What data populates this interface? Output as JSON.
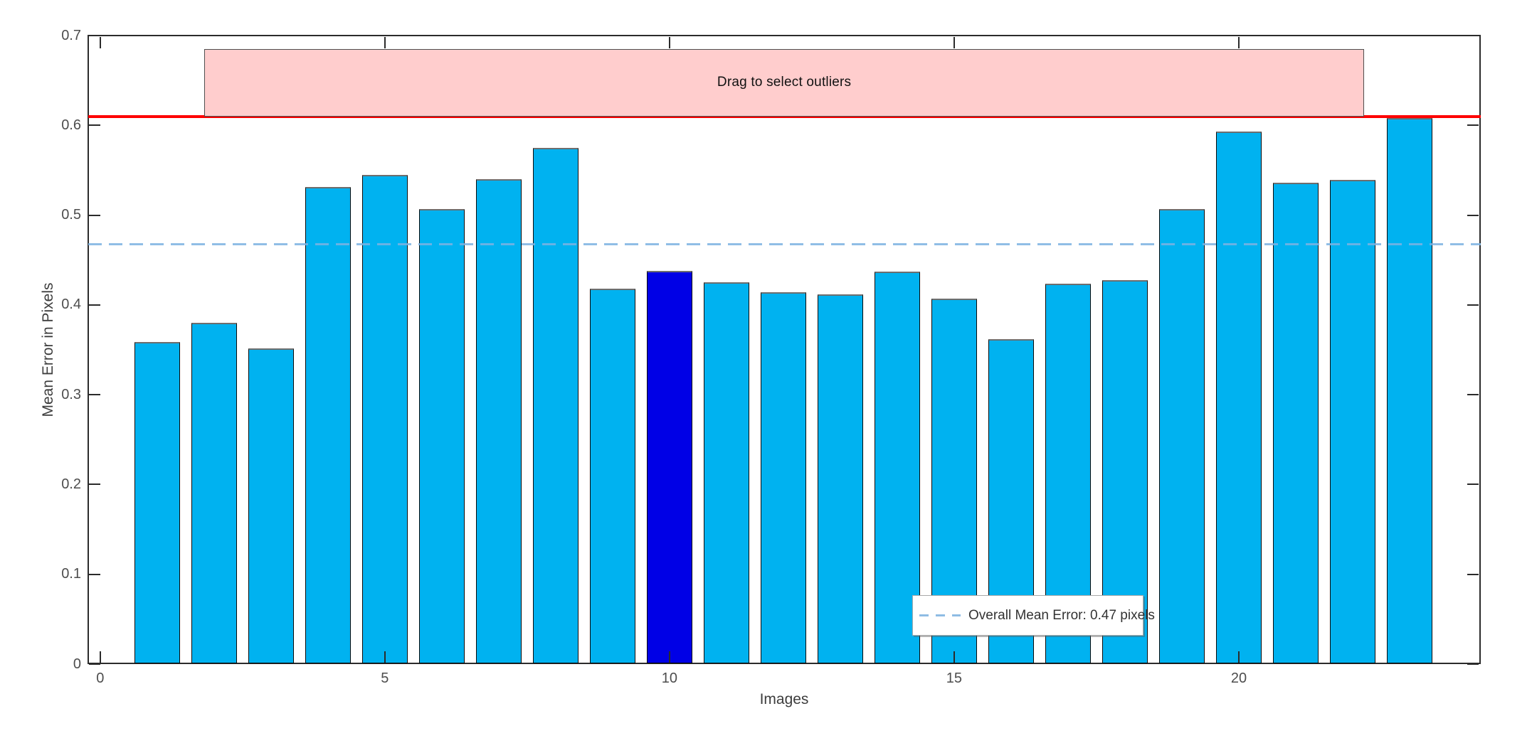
{
  "chart_data": {
    "type": "bar",
    "title": "",
    "xlabel": "Images",
    "ylabel": "Mean Error in Pixels",
    "x": [
      1,
      2,
      3,
      4,
      5,
      6,
      7,
      8,
      9,
      10,
      11,
      12,
      13,
      14,
      15,
      16,
      17,
      18,
      19,
      20,
      21,
      22,
      23
    ],
    "values": [
      0.359,
      0.38,
      0.352,
      0.531,
      0.545,
      0.507,
      0.54,
      0.575,
      0.418,
      0.438,
      0.425,
      0.414,
      0.412,
      0.437,
      0.407,
      0.362,
      0.424,
      0.428,
      0.507,
      0.593,
      0.536,
      0.539,
      0.608
    ],
    "selected_image": 10,
    "bar_width_units": 0.8,
    "xlim": [
      -0.21,
      24.25
    ],
    "ylim": [
      0,
      0.7
    ],
    "grid": false,
    "xticks": [
      {
        "v": 0,
        "label": "0"
      },
      {
        "v": 5,
        "label": "5"
      },
      {
        "v": 10,
        "label": "10"
      },
      {
        "v": 15,
        "label": "15"
      },
      {
        "v": 20,
        "label": "20"
      }
    ],
    "yticks": [
      {
        "v": 0.0,
        "label": "0"
      },
      {
        "v": 0.1,
        "label": "0.1"
      },
      {
        "v": 0.2,
        "label": "0.2"
      },
      {
        "v": 0.3,
        "label": "0.3"
      },
      {
        "v": 0.4,
        "label": "0.4"
      },
      {
        "v": 0.5,
        "label": "0.5"
      },
      {
        "v": 0.6,
        "label": "0.6"
      },
      {
        "v": 0.7,
        "label": "0.7"
      }
    ],
    "threshold_line": {
      "y": 0.61,
      "color": "#fe0000"
    },
    "mean_line": {
      "y": 0.468,
      "style": "dashed",
      "color": "#7db2e2"
    },
    "drag_region": {
      "x0": 1.83,
      "x1": 22.2,
      "y0": 0.61,
      "y1": 0.685,
      "label": "Drag to select outliers",
      "fill": "#ffcdcd",
      "border": "#4f4f4f"
    },
    "legend": {
      "position": "inside-bottom-right",
      "entries": [
        {
          "label": "Overall Mean Error: 0.47 pixels",
          "line_style": "dashed",
          "line_color": "#8fbce4"
        }
      ]
    }
  },
  "colors": {
    "bar_fill": "#00b2f0",
    "bar_edge": "#0a0a0a",
    "bar_highlight": "#0000e6",
    "axis": "#2b2b2b",
    "tick_text": "#4d4d4d",
    "title_text": "#3d3d3d",
    "background": "#ffffff"
  }
}
